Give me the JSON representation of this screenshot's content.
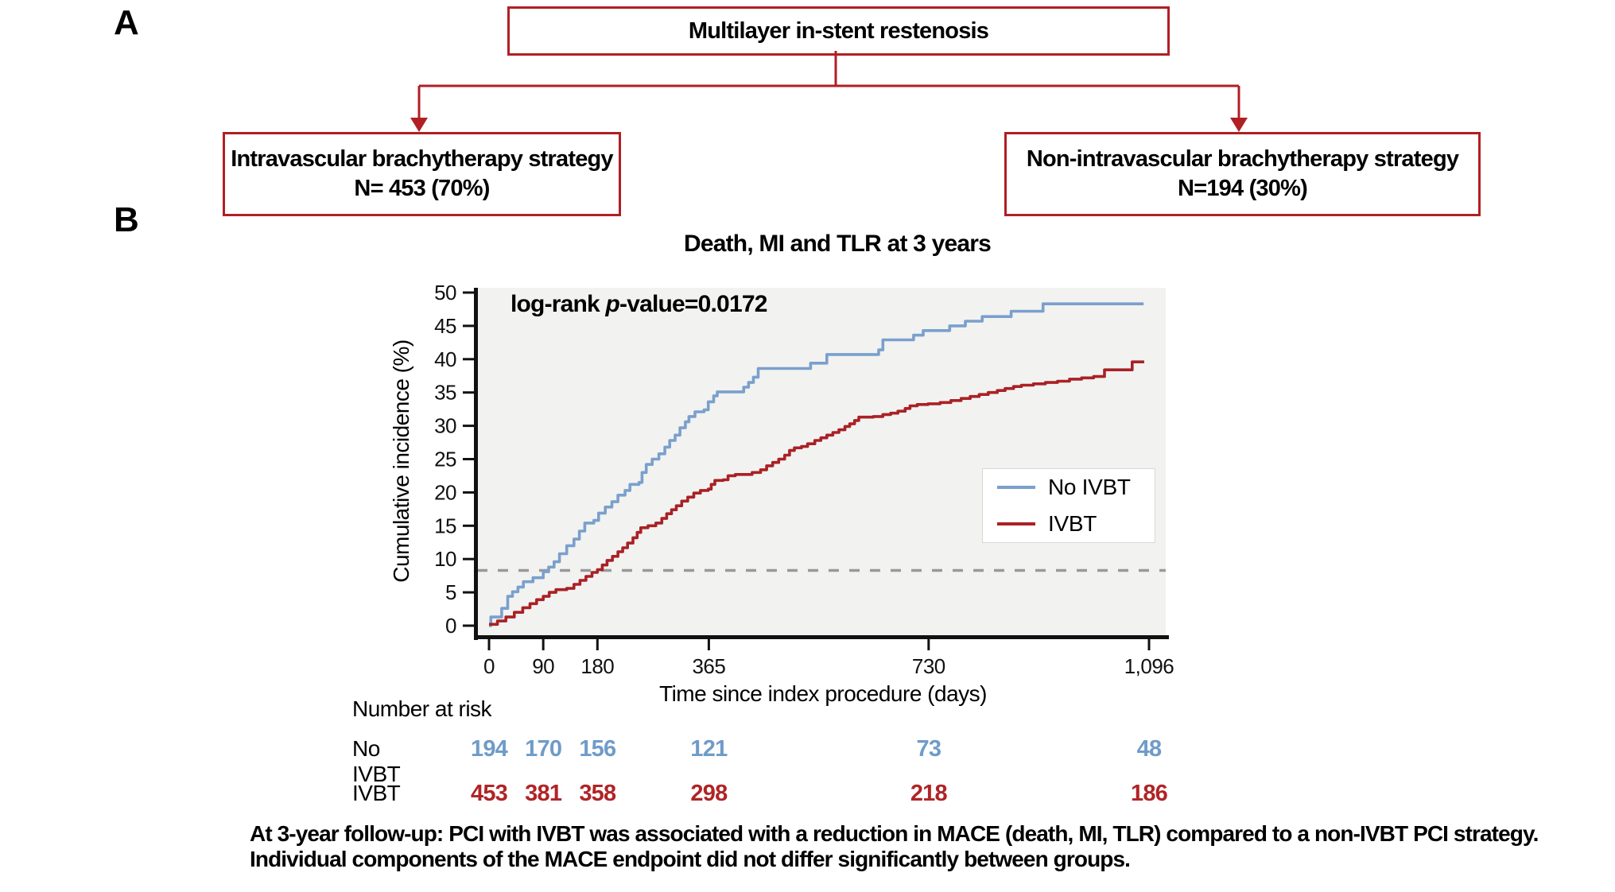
{
  "panel_a": {
    "label": "A",
    "root_box": "Multilayer in-stent restenosis",
    "left_box": {
      "line1": "Intravascular brachytherapy strategy",
      "line2": "N= 453 (70%)"
    },
    "right_box": {
      "line1": "Non-intravascular brachytherapy strategy",
      "line2": "N=194 (30%)"
    },
    "connector_color": "#b01f24"
  },
  "panel_b": {
    "label": "B"
  },
  "chart_data": {
    "type": "line",
    "title": "Death, MI and TLR at 3 years",
    "xlabel": "Time since index procedure (days)",
    "ylabel": "Cumulative incidence (%)",
    "xlim": [
      0,
      1096
    ],
    "ylim": [
      0,
      50
    ],
    "x_ticks": {
      "values": [
        0,
        90,
        180,
        365,
        730,
        1096
      ],
      "labels": [
        "0",
        "90",
        "180",
        "365",
        "730",
        "1,096"
      ]
    },
    "y_ticks": [
      0,
      5,
      10,
      15,
      20,
      25,
      30,
      35,
      40,
      45,
      50
    ],
    "grid": false,
    "plot_bg": "#f2f2f1",
    "annotation": {
      "pre": "log-rank ",
      "italic": "p",
      "post": "-value=0.0172"
    },
    "reference_line": {
      "y": 8.3,
      "style": "dashed",
      "color": "#999999"
    },
    "legend": {
      "position": "right-middle",
      "entries": [
        {
          "label": "No IVBT",
          "color": "#7aa0cc"
        },
        {
          "label": "IVBT",
          "color": "#a92125"
        }
      ]
    },
    "series": [
      {
        "name": "No IVBT",
        "color": "#7aa0cc",
        "step": true,
        "points": [
          [
            0,
            0
          ],
          [
            3,
            1.3
          ],
          [
            18,
            1.3
          ],
          [
            21,
            2.6
          ],
          [
            28,
            2.6
          ],
          [
            31,
            4.4
          ],
          [
            39,
            5.1
          ],
          [
            48,
            5.8
          ],
          [
            57,
            6.6
          ],
          [
            73,
            7.2
          ],
          [
            90,
            8.1
          ],
          [
            99,
            8.8
          ],
          [
            108,
            9.6
          ],
          [
            117,
            10.8
          ],
          [
            129,
            12.0
          ],
          [
            141,
            13.0
          ],
          [
            150,
            14.2
          ],
          [
            159,
            15.4
          ],
          [
            174,
            15.8
          ],
          [
            182,
            16.9
          ],
          [
            193,
            17.8
          ],
          [
            204,
            18.6
          ],
          [
            214,
            19.6
          ],
          [
            226,
            20.3
          ],
          [
            234,
            21.2
          ],
          [
            249,
            21.5
          ],
          [
            254,
            23.0
          ],
          [
            261,
            24.2
          ],
          [
            271,
            25.0
          ],
          [
            282,
            25.8
          ],
          [
            292,
            26.8
          ],
          [
            300,
            27.8
          ],
          [
            309,
            28.6
          ],
          [
            317,
            29.7
          ],
          [
            326,
            30.6
          ],
          [
            332,
            31.4
          ],
          [
            342,
            32.1
          ],
          [
            357,
            32.4
          ],
          [
            364,
            33.6
          ],
          [
            373,
            34.5
          ],
          [
            379,
            35.1
          ],
          [
            417,
            35.1
          ],
          [
            423,
            35.8
          ],
          [
            431,
            36.5
          ],
          [
            439,
            37.3
          ],
          [
            447,
            38.6
          ],
          [
            528,
            38.6
          ],
          [
            534,
            39.4
          ],
          [
            556,
            39.4
          ],
          [
            561,
            40.7
          ],
          [
            639,
            40.7
          ],
          [
            647,
            41.4
          ],
          [
            654,
            42.9
          ],
          [
            699,
            42.9
          ],
          [
            705,
            43.6
          ],
          [
            721,
            44.3
          ],
          [
            760,
            44.3
          ],
          [
            765,
            45.0
          ],
          [
            791,
            45.7
          ],
          [
            819,
            46.4
          ],
          [
            862,
            46.4
          ],
          [
            867,
            47.2
          ],
          [
            915,
            47.2
          ],
          [
            920,
            48.3
          ],
          [
            1087,
            48.3
          ]
        ]
      },
      {
        "name": "IVBT",
        "color": "#a92125",
        "step": true,
        "points": [
          [
            0,
            0.2
          ],
          [
            14,
            0.7
          ],
          [
            28,
            1.3
          ],
          [
            42,
            2.0
          ],
          [
            56,
            2.7
          ],
          [
            68,
            3.3
          ],
          [
            79,
            3.9
          ],
          [
            90,
            4.4
          ],
          [
            100,
            5.0
          ],
          [
            111,
            5.4
          ],
          [
            129,
            5.6
          ],
          [
            141,
            6.2
          ],
          [
            151,
            6.8
          ],
          [
            161,
            7.4
          ],
          [
            171,
            8.0
          ],
          [
            180,
            8.4
          ],
          [
            188,
            9.1
          ],
          [
            196,
            9.8
          ],
          [
            205,
            10.4
          ],
          [
            214,
            11.1
          ],
          [
            222,
            11.7
          ],
          [
            230,
            12.4
          ],
          [
            239,
            13.2
          ],
          [
            246,
            14.0
          ],
          [
            252,
            14.7
          ],
          [
            264,
            15.0
          ],
          [
            277,
            15.4
          ],
          [
            287,
            16.1
          ],
          [
            295,
            16.8
          ],
          [
            303,
            17.4
          ],
          [
            311,
            18.0
          ],
          [
            320,
            18.7
          ],
          [
            330,
            19.3
          ],
          [
            340,
            19.9
          ],
          [
            351,
            20.3
          ],
          [
            364,
            20.5
          ],
          [
            369,
            21.2
          ],
          [
            375,
            21.8
          ],
          [
            389,
            21.9
          ],
          [
            397,
            22.5
          ],
          [
            409,
            22.7
          ],
          [
            437,
            23.0
          ],
          [
            451,
            23.4
          ],
          [
            461,
            24.0
          ],
          [
            471,
            24.5
          ],
          [
            481,
            25.0
          ],
          [
            491,
            25.6
          ],
          [
            499,
            26.3
          ],
          [
            507,
            26.7
          ],
          [
            519,
            26.9
          ],
          [
            529,
            27.3
          ],
          [
            541,
            27.8
          ],
          [
            551,
            28.2
          ],
          [
            561,
            28.6
          ],
          [
            571,
            29.0
          ],
          [
            581,
            29.4
          ],
          [
            591,
            29.9
          ],
          [
            599,
            30.3
          ],
          [
            607,
            30.8
          ],
          [
            614,
            31.3
          ],
          [
            638,
            31.4
          ],
          [
            654,
            31.7
          ],
          [
            667,
            31.9
          ],
          [
            679,
            32.2
          ],
          [
            691,
            32.6
          ],
          [
            699,
            33.0
          ],
          [
            711,
            33.2
          ],
          [
            729,
            33.3
          ],
          [
            749,
            33.5
          ],
          [
            767,
            33.8
          ],
          [
            784,
            34.1
          ],
          [
            799,
            34.4
          ],
          [
            814,
            34.7
          ],
          [
            829,
            35.0
          ],
          [
            844,
            35.3
          ],
          [
            857,
            35.6
          ],
          [
            871,
            35.9
          ],
          [
            884,
            36.1
          ],
          [
            904,
            36.3
          ],
          [
            924,
            36.5
          ],
          [
            944,
            36.7
          ],
          [
            964,
            37.0
          ],
          [
            984,
            37.2
          ],
          [
            1004,
            37.4
          ],
          [
            1022,
            38.4
          ],
          [
            1062,
            38.4
          ],
          [
            1068,
            39.6
          ],
          [
            1088,
            39.6
          ]
        ]
      }
    ]
  },
  "risk_table": {
    "header": "Number at risk",
    "times": [
      0,
      90,
      180,
      365,
      730,
      1096
    ],
    "rows": [
      {
        "label": "No IVBT",
        "color": "#6f9bc8",
        "values": [
          "194",
          "170",
          "156",
          "121",
          "73",
          "48"
        ]
      },
      {
        "label": "IVBT",
        "color": "#b02427",
        "values": [
          "453",
          "381",
          "358",
          "298",
          "218",
          "186"
        ]
      }
    ]
  },
  "caption": {
    "line1": "At 3-year follow-up: PCI with IVBT was associated with a reduction in MACE (death, MI, TLR) compared to a non-IVBT PCI strategy.",
    "line2": "Individual components of the MACE endpoint did not differ significantly between groups."
  }
}
